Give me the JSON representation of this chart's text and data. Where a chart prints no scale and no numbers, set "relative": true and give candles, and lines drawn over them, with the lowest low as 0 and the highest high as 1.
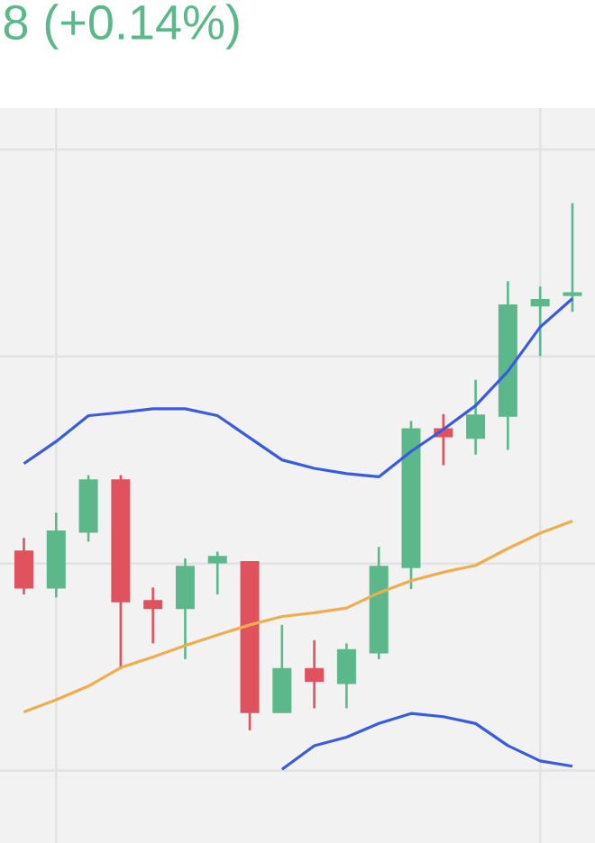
{
  "chart_data": {
    "type": "candlestick",
    "title": "8 (+0.14%)",
    "relative": true,
    "colors": [
      "#e0525e",
      "#5cb88a",
      "#5cb88a",
      "#e0525e",
      "#e0525e",
      "#5cb88a",
      "#5cb88a",
      "#e0525e",
      "#5cb88a",
      "#e0525e",
      "#5cb88a",
      "#5cb88a",
      "#5cb88a",
      "#e0525e",
      "#5cb88a",
      "#5cb88a",
      "#5cb88a",
      "#5cb88a"
    ],
    "categories": [
      null,
      null,
      null,
      null,
      null,
      null,
      null,
      null,
      null,
      null,
      null,
      null,
      null,
      null,
      null,
      null,
      null,
      null
    ],
    "ohlc": [
      [
        0.339,
        0.365,
        0.258,
        0.271
      ],
      [
        0.271,
        0.413,
        0.252,
        0.377
      ],
      [
        0.377,
        0.484,
        0.358,
        0.474
      ],
      [
        0.474,
        0.484,
        0.116,
        0.245
      ],
      [
        0.245,
        0.271,
        0.165,
        0.232
      ],
      [
        0.232,
        0.326,
        0.135,
        0.31
      ],
      [
        0.319,
        0.339,
        0.258,
        0.329
      ],
      [
        0.319,
        0.319,
        0,
        0.035
      ],
      [
        0.035,
        0.2,
        0.035,
        0.116
      ],
      [
        0.116,
        0.171,
        0.042,
        0.094
      ],
      [
        0.09,
        0.165,
        0.042,
        0.152
      ],
      [
        0.148,
        0.348,
        0.135,
        0.31
      ],
      [
        0.31,
        0.587,
        0.268,
        0.571
      ],
      [
        0.571,
        0.6,
        0.503,
        0.558
      ],
      [
        0.555,
        0.665,
        0.523,
        0.597
      ],
      [
        0.597,
        0.852,
        0.532,
        0.806
      ],
      [
        0.806,
        0.842,
        0.71,
        0.816
      ],
      [
        0.826,
        1,
        0.794,
        0.829
      ]
    ],
    "series": [
      {
        "type": "line",
        "color": "#3a5be0",
        "values": [
          0.506,
          0.548,
          0.597,
          0.603,
          0.61,
          0.61,
          0.597,
          0.555,
          0.513,
          0.497,
          0.487,
          0.481,
          0.529,
          0.571,
          0.616,
          0.681,
          0.765,
          0.819
        ]
      },
      {
        "type": "line",
        "color": "#f0ad4e",
        "values": [
          0.035,
          0.058,
          0.084,
          0.119,
          0.139,
          0.161,
          0.181,
          0.2,
          0.216,
          0.223,
          0.232,
          0.261,
          0.284,
          0.3,
          0.313,
          0.345,
          0.374,
          0.397
        ]
      },
      {
        "type": "line",
        "color": "#3a5be0",
        "values": [
          null,
          null,
          null,
          null,
          null,
          null,
          null,
          null,
          -0.074,
          -0.029,
          -0.013,
          0.013,
          0.032,
          0.026,
          0.013,
          -0.029,
          -0.058,
          -0.068
        ]
      }
    ]
  }
}
